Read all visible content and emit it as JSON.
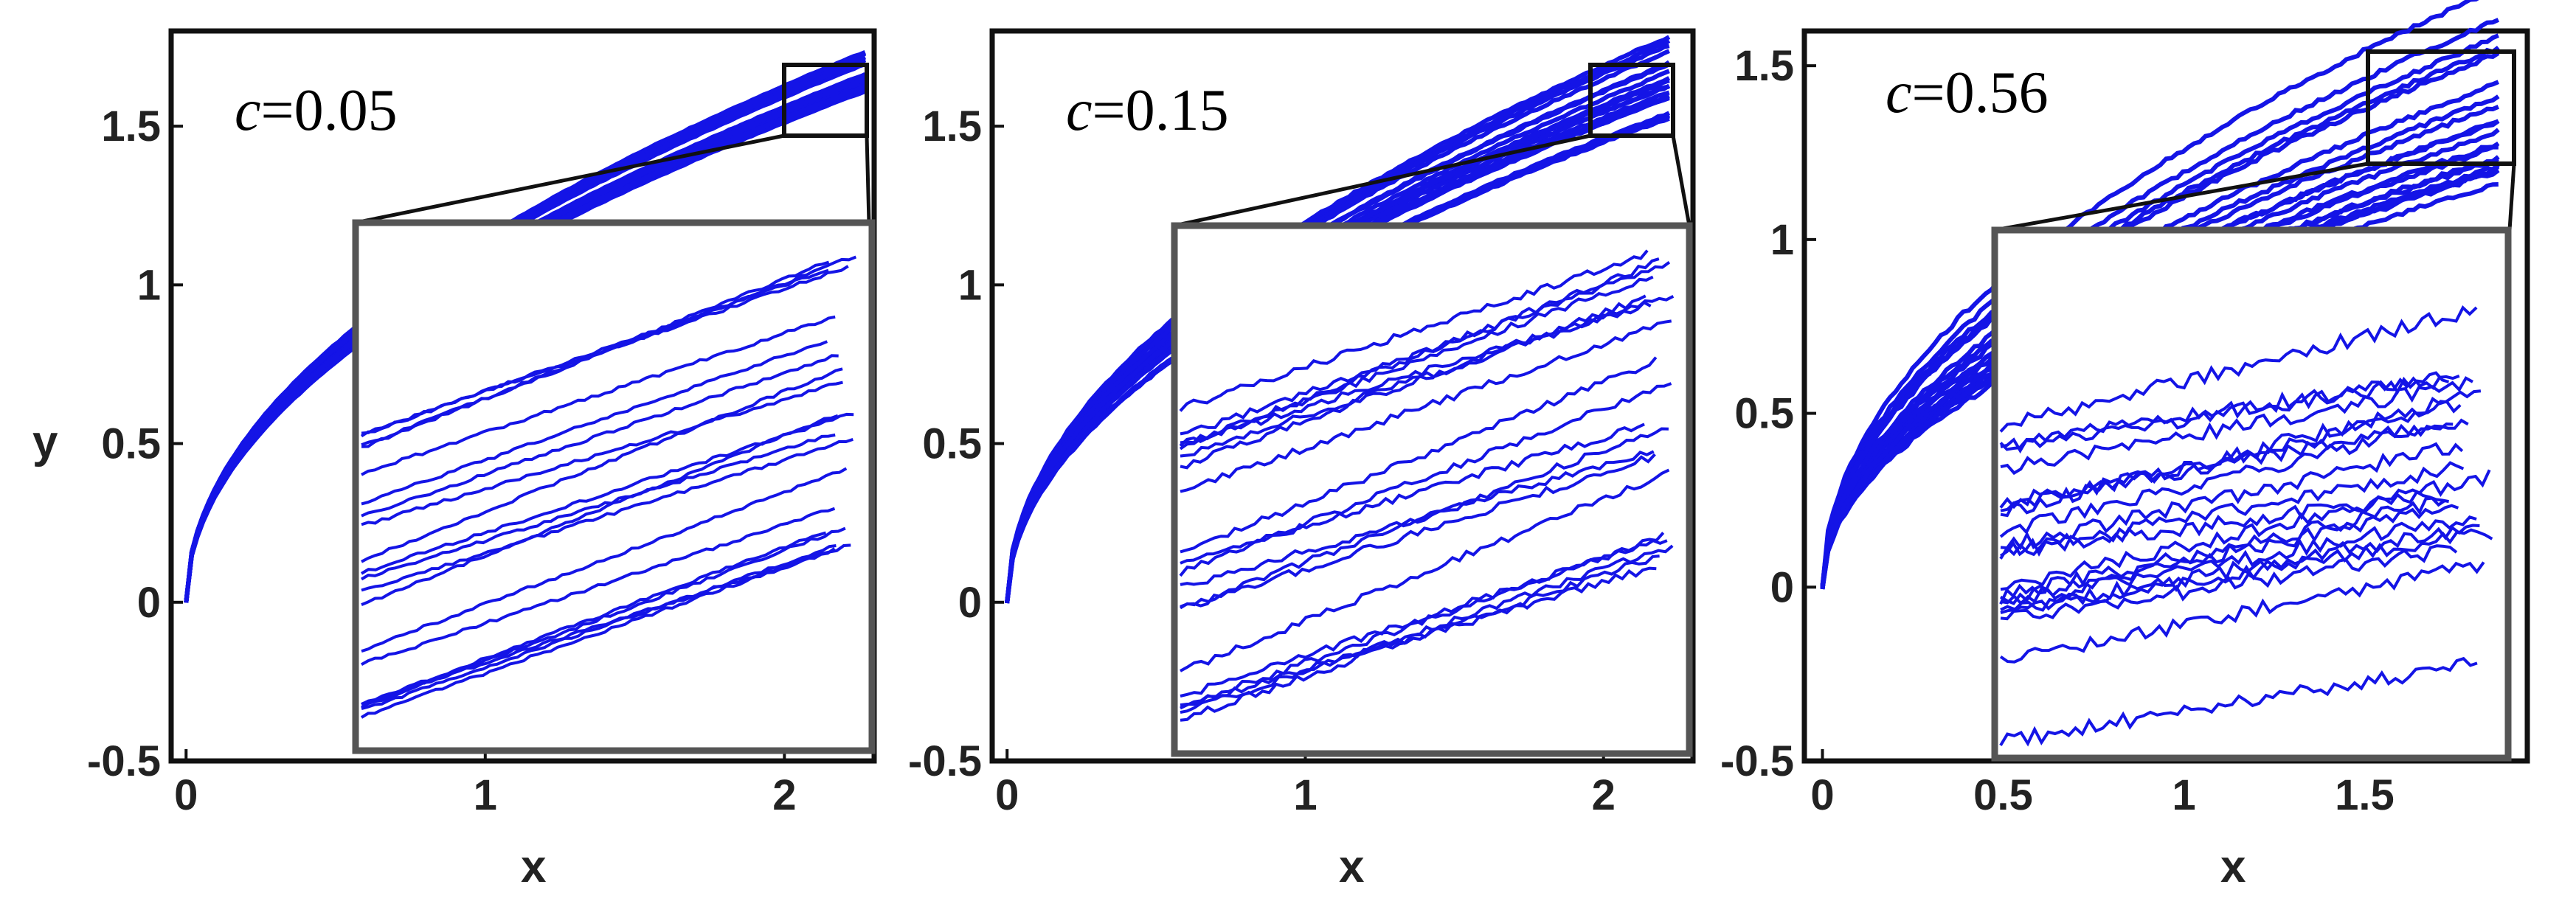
{
  "colors": {
    "trajectory": "#1414e6",
    "axes": "#111111",
    "inset_frame": "#555555"
  },
  "chart_data": [
    {
      "type": "line",
      "panel": 1,
      "annotation_var": "c",
      "annotation_value": "=0.05",
      "xlabel": "x",
      "ylabel": "y",
      "xlim": [
        -0.05,
        2.3
      ],
      "ylim": [
        -0.5,
        1.8
      ],
      "xticks": [
        0,
        1,
        2
      ],
      "xtick_labels": [
        "0",
        "1",
        "2"
      ],
      "yticks": [
        -0.5,
        0,
        0.5,
        1,
        1.5
      ],
      "ytick_labels": [
        "-0.5",
        "0",
        "0.5",
        "1",
        "1.5"
      ],
      "num_trajectories": 20,
      "curve_amplitude": 1.11,
      "band_spread": 0.03,
      "noise_level": 0.35,
      "outlier": false,
      "zoom_region": {
        "x": [
          2.0,
          2.3
        ],
        "y": [
          1.52,
          1.75
        ]
      }
    },
    {
      "type": "line",
      "panel": 2,
      "annotation_var": "c",
      "annotation_value": "=0.15",
      "xlabel": "x",
      "ylabel": "",
      "xlim": [
        -0.05,
        2.3
      ],
      "ylim": [
        -0.5,
        1.8
      ],
      "xticks": [
        0,
        1,
        2
      ],
      "xtick_labels": [
        "0",
        "1",
        "2"
      ],
      "yticks": [
        -0.5,
        0,
        0.5,
        1,
        1.5
      ],
      "ytick_labels": [
        "-0.5",
        "0",
        "0.5",
        "1",
        "1.5"
      ],
      "num_trajectories": 20,
      "curve_amplitude": 1.11,
      "band_spread": 0.06,
      "noise_level": 0.8,
      "outlier": false,
      "zoom_region": {
        "x": [
          1.95,
          2.25
        ],
        "y": [
          1.5,
          1.75
        ]
      }
    },
    {
      "type": "line",
      "panel": 3,
      "annotation_var": "c",
      "annotation_value": "=0.56",
      "xlabel": "x",
      "ylabel": "",
      "xlim": [
        -0.05,
        1.95
      ],
      "ylim": [
        -0.5,
        1.6
      ],
      "xticks": [
        0,
        0.5,
        1,
        1.5
      ],
      "xtick_labels": [
        "0",
        "0.5",
        "1",
        "1.5"
      ],
      "yticks": [
        -0.5,
        0,
        0.5,
        1,
        1.5
      ],
      "ytick_labels": [
        "-0.5",
        "0",
        "0.5",
        "1",
        "1.5"
      ],
      "num_trajectories": 20,
      "curve_amplitude": 1.07,
      "band_spread": 0.14,
      "noise_level": 1.6,
      "outlier": true,
      "zoom_region": {
        "x": [
          1.45,
          1.9
        ],
        "y": [
          1.25,
          1.6
        ]
      }
    }
  ]
}
